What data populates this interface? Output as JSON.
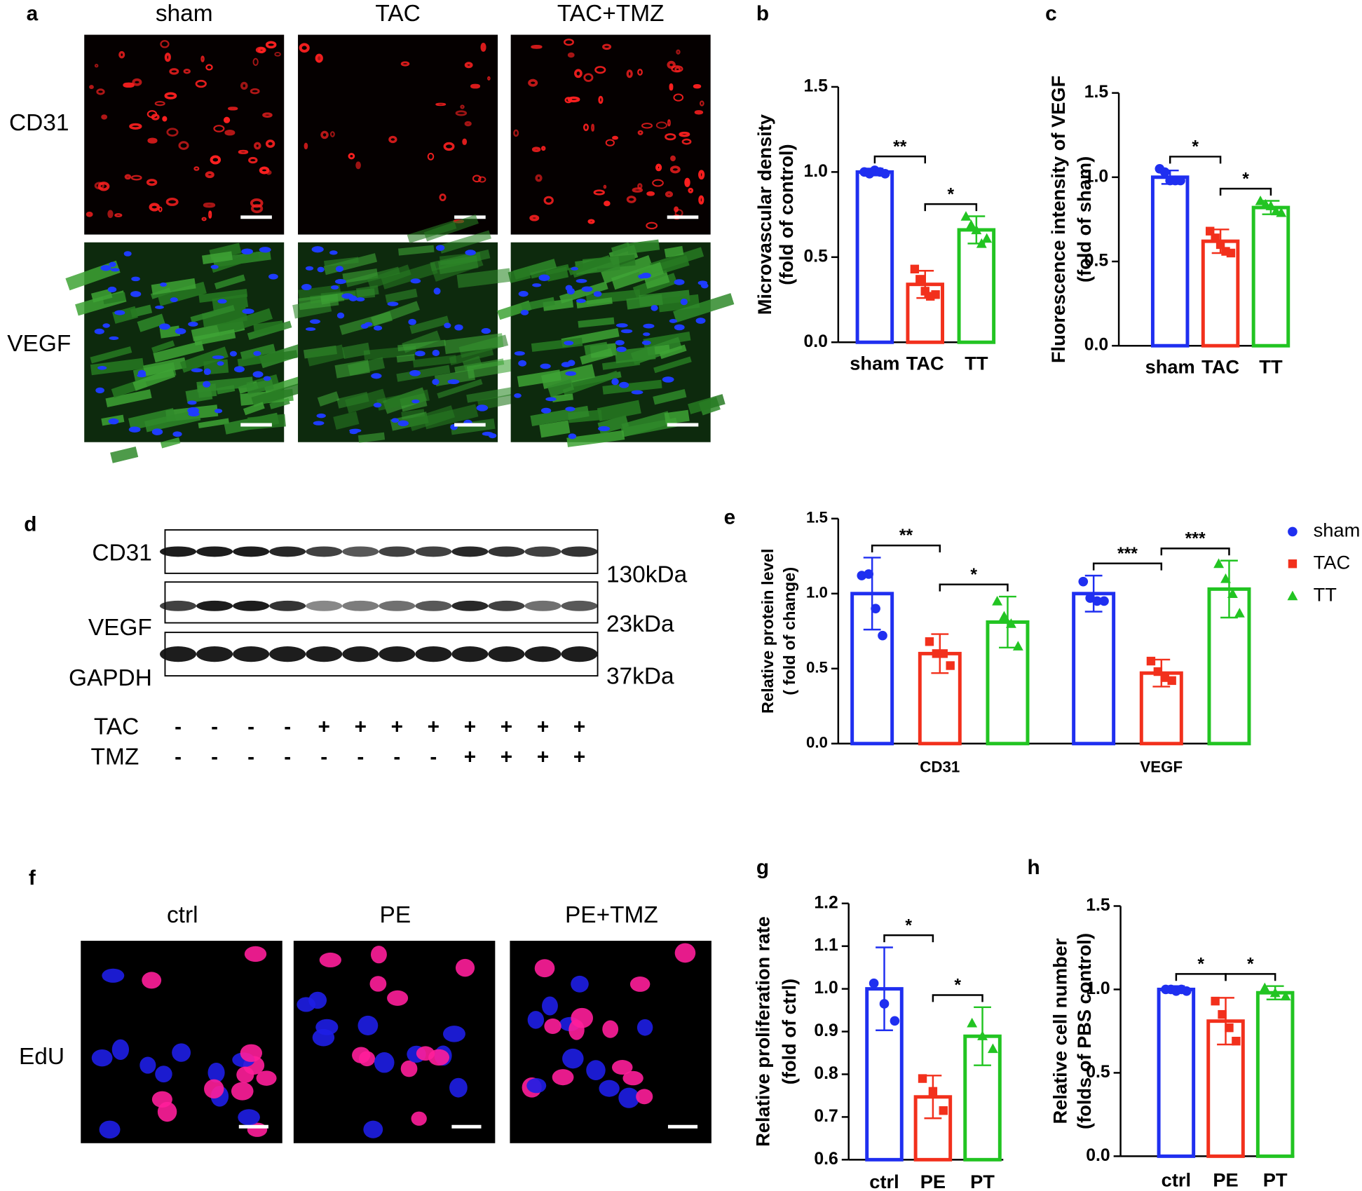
{
  "panel_labels": [
    "a",
    "b",
    "c",
    "d",
    "e",
    "f",
    "g",
    "h"
  ],
  "micrographs": {
    "columns": [
      "sham",
      "TAC",
      "TAC+TMZ"
    ],
    "rows": [
      "CD31",
      "VEGF"
    ]
  },
  "edu": {
    "columns": [
      "ctrl",
      "PE",
      "PE+TMZ"
    ],
    "row": "EdU"
  },
  "blot": {
    "proteins": [
      "CD31",
      "VEGF",
      "GAPDH"
    ],
    "sizes": [
      "130kDa",
      "23kDa",
      "37kDa"
    ],
    "treatments": [
      {
        "name": "TAC",
        "lanes": [
          "-",
          "-",
          "-",
          "-",
          "+",
          "+",
          "+",
          "+",
          "+",
          "+",
          "+",
          "+"
        ]
      },
      {
        "name": "TMZ",
        "lanes": [
          "-",
          "-",
          "-",
          "-",
          "-",
          "-",
          "-",
          "-",
          "+",
          "+",
          "+",
          "+"
        ]
      }
    ]
  },
  "chart_data": [
    {
      "type": "bar",
      "ylabel": [
        "Microvascular density",
        "(fold of control)"
      ],
      "categories": [
        "sham",
        "TAC",
        "TT"
      ],
      "colors": [
        "#1f2ff0",
        "#f2301c",
        "#22c422"
      ],
      "values": [
        1.0,
        0.34,
        0.66
      ],
      "errors": [
        0.02,
        0.08,
        0.08
      ],
      "points": [
        [
          1.0,
          0.99,
          1.01,
          1.0,
          0.99
        ],
        [
          0.43,
          0.37,
          0.3,
          0.27,
          0.28
        ],
        [
          0.74,
          0.69,
          0.66,
          0.58,
          0.61
        ]
      ],
      "ylim": [
        0,
        1.5
      ],
      "yticks": [
        {
          "value": 0,
          "label": "0.0"
        },
        0.5,
        {
          "value": 1,
          "label": "1.0"
        },
        1.5
      ],
      "annotations": [
        {
          "text": "**",
          "between": [
            "sham",
            "TAC"
          ]
        },
        {
          "text": "*",
          "between": [
            "TAC",
            "TT"
          ]
        }
      ]
    },
    {
      "type": "bar",
      "ylabel": [
        "Fluorescence intensity of VEGF",
        "(fold of sham)"
      ],
      "categories": [
        "sham",
        "TAC",
        "TT"
      ],
      "colors": [
        "#1f2ff0",
        "#f2301c",
        "#22c422"
      ],
      "values": [
        1.0,
        0.62,
        0.82
      ],
      "errors": [
        0.04,
        0.07,
        0.04
      ],
      "points": [
        [
          1.05,
          1.03,
          0.98,
          0.98,
          0.98
        ],
        [
          0.68,
          0.64,
          0.6,
          0.56,
          0.55
        ],
        [
          0.86,
          0.84,
          0.83,
          0.8,
          0.79
        ]
      ],
      "ylim": [
        0,
        1.5
      ],
      "yticks": [
        {
          "value": 0,
          "label": "0.0"
        },
        0.5,
        {
          "value": 1,
          "label": "1.0"
        },
        1.5
      ],
      "annotations": [
        {
          "text": "*",
          "between": [
            "sham",
            "TAC"
          ]
        },
        {
          "text": "*",
          "between": [
            "TAC",
            "TT"
          ]
        }
      ]
    },
    {
      "type": "grouped-bar",
      "ylabel": [
        "Relative  protein level",
        "( fold of change)"
      ],
      "categories": [
        "CD31",
        "VEGF"
      ],
      "series": [
        {
          "name": "sham",
          "color": "#1f2ff0",
          "values": [
            1.0,
            1.0
          ],
          "errors": [
            0.24,
            0.12
          ],
          "points": [
            [
              1.12,
              1.13,
              0.9,
              0.72
            ],
            [
              1.08,
              0.97,
              0.95,
              0.95
            ]
          ]
        },
        {
          "name": "TAC",
          "color": "#f2301c",
          "values": [
            0.6,
            0.47
          ],
          "errors": [
            0.13,
            0.09
          ],
          "points": [
            [
              0.68,
              0.6,
              0.6,
              0.52
            ],
            [
              0.55,
              0.48,
              0.44,
              0.42
            ]
          ]
        },
        {
          "name": "TT",
          "color": "#22c422",
          "values": [
            0.81,
            1.03
          ],
          "errors": [
            0.17,
            0.19
          ],
          "points": [
            [
              0.95,
              0.85,
              0.8,
              0.65
            ],
            [
              1.2,
              1.1,
              1.0,
              0.87
            ]
          ]
        }
      ],
      "ylim": [
        0,
        1.5
      ],
      "yticks": [
        {
          "value": 0,
          "label": "0.0"
        },
        0.5,
        {
          "value": 1,
          "label": "1.0"
        },
        1.5
      ],
      "annotations": [
        {
          "text": "**",
          "group": "CD31",
          "between": [
            "sham",
            "TAC"
          ]
        },
        {
          "text": "*",
          "group": "CD31",
          "between": [
            "TAC",
            "TT"
          ]
        },
        {
          "text": "***",
          "group": "VEGF",
          "between": [
            "sham",
            "TAC"
          ]
        },
        {
          "text": "***",
          "group": "VEGF",
          "between": [
            "TAC",
            "TT"
          ]
        }
      ]
    },
    {
      "type": "bar",
      "ylabel": [
        "Relative proliferation rate",
        "(fold of ctrl)"
      ],
      "categories": [
        "ctrl",
        "PE",
        "PT"
      ],
      "colors": [
        "#1f2ff0",
        "#f2301c",
        "#22c422"
      ],
      "values": [
        1.0,
        0.747,
        0.889
      ],
      "errors": [
        0.097,
        0.05,
        0.068
      ],
      "points": [
        [
          1.013,
          0.965,
          0.925
        ],
        [
          0.79,
          0.76,
          0.715
        ],
        [
          0.92,
          0.89,
          0.86
        ]
      ],
      "ylim": [
        0.6,
        1.2
      ],
      "yticks": [
        0.6,
        0.7,
        0.8,
        0.9,
        {
          "value": 1,
          "label": "1.0"
        },
        1.1,
        1.2
      ],
      "annotations": [
        {
          "text": "*",
          "between": [
            "ctrl",
            "PE"
          ]
        },
        {
          "text": "*",
          "between": [
            "PE",
            "PT"
          ]
        }
      ]
    },
    {
      "type": "bar",
      "ylabel": [
        "Relative cell number",
        "(folds of PBS control)"
      ],
      "categories": [
        "ctrl",
        "PE",
        "PT"
      ],
      "colors": [
        "#1f2ff0",
        "#f2301c",
        "#22c422"
      ],
      "values": [
        1.0,
        0.81,
        0.98
      ],
      "errors": [
        0.02,
        0.14,
        0.04
      ],
      "points": [
        [
          1.0,
          1.0,
          0.99,
          1.0,
          0.99
        ],
        [
          0.93,
          0.85,
          0.77,
          0.69
        ],
        [
          1.01,
          0.98,
          0.96
        ]
      ],
      "ylim": [
        0,
        1.5
      ],
      "yticks": [
        {
          "value": 0,
          "label": "0.0"
        },
        0.5,
        {
          "value": 1,
          "label": "1.0"
        },
        1.5
      ],
      "annotations": [
        {
          "text": "*",
          "between": [
            "ctrl",
            "PE"
          ]
        },
        {
          "text": "*",
          "between": [
            "PE",
            "PT"
          ]
        }
      ]
    }
  ]
}
